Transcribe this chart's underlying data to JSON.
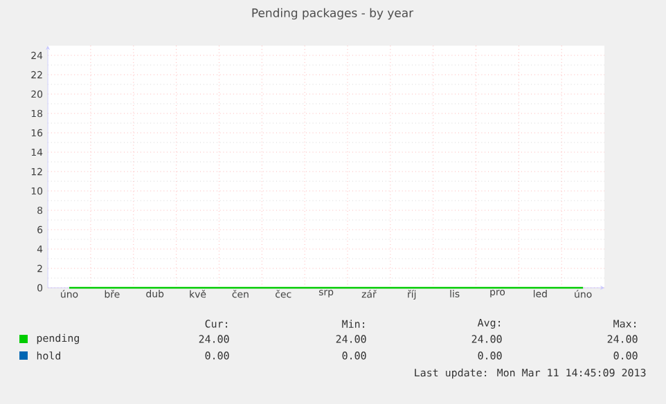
{
  "chart_data": {
    "type": "line",
    "title": "Pending packages - by year",
    "categories": [
      "úno",
      "bře",
      "dub",
      "kvě",
      "čen",
      "čec",
      "srp",
      "zář",
      "říj",
      "lis",
      "pro",
      "led",
      "úno"
    ],
    "series": [
      {
        "name": "pending",
        "color": "#00cc00",
        "values": [
          0,
          0,
          0,
          0,
          0,
          0,
          0,
          0,
          0,
          0,
          0,
          0,
          0
        ]
      },
      {
        "name": "hold",
        "color": "#0066b3",
        "values": [
          null,
          null,
          null,
          null,
          null,
          null,
          null,
          null,
          null,
          null,
          null,
          null,
          null
        ]
      }
    ],
    "ylim": [
      0,
      25
    ],
    "yticks": [
      0,
      2,
      4,
      6,
      8,
      10,
      12,
      14,
      16,
      18,
      20,
      22,
      24
    ],
    "grid": true,
    "legend": "bottom left",
    "annotations": [
      "Cur:",
      "Min:",
      "Avg:",
      "Max:",
      "24.00",
      "24.00",
      "24.00",
      "24.00",
      "0.00",
      "0.00",
      "0.00",
      "0.00",
      "Last update: Mon Mar 11 14:45:09 2013"
    ]
  }
}
